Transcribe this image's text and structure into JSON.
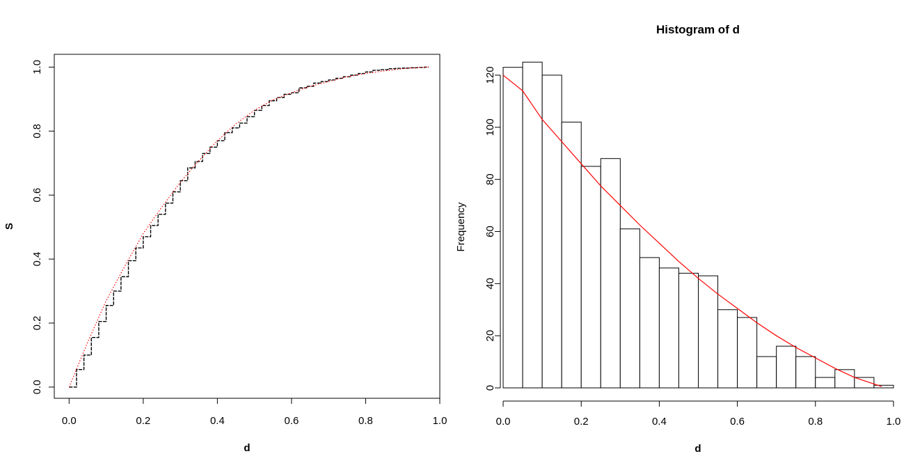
{
  "chart_data": [
    {
      "type": "line",
      "title": "",
      "xlabel": "d",
      "ylabel": "S",
      "xlim": [
        -0.04,
        1.0
      ],
      "ylim": [
        -0.035,
        1.04
      ],
      "x_ticks": [
        0.0,
        0.2,
        0.4,
        0.6,
        0.8,
        1.0
      ],
      "x_tick_labels": [
        "0.0",
        "0.2",
        "0.4",
        "0.6",
        "0.8",
        "1.0"
      ],
      "y_ticks": [
        0.0,
        0.2,
        0.4,
        0.6,
        0.8,
        1.0
      ],
      "y_tick_labels": [
        "0.0",
        "0.2",
        "0.4",
        "0.6",
        "0.8",
        "1.0"
      ],
      "grid": false,
      "legend": "none",
      "series": [
        {
          "style": "step",
          "color": "#000000",
          "x": [
            0.0,
            0.02,
            0.04,
            0.06,
            0.08,
            0.1,
            0.12,
            0.14,
            0.16,
            0.18,
            0.2,
            0.22,
            0.24,
            0.26,
            0.28,
            0.3,
            0.32,
            0.34,
            0.36,
            0.38,
            0.4,
            0.42,
            0.44,
            0.46,
            0.48,
            0.5,
            0.52,
            0.54,
            0.56,
            0.58,
            0.6,
            0.62,
            0.64,
            0.66,
            0.68,
            0.7,
            0.72,
            0.74,
            0.76,
            0.78,
            0.8,
            0.82,
            0.84,
            0.86,
            0.88,
            0.9,
            0.92,
            0.94,
            0.96,
            0.97
          ],
          "y": [
            0.0,
            0.055,
            0.1,
            0.155,
            0.205,
            0.255,
            0.3,
            0.345,
            0.395,
            0.435,
            0.47,
            0.505,
            0.54,
            0.575,
            0.61,
            0.645,
            0.685,
            0.705,
            0.73,
            0.75,
            0.77,
            0.795,
            0.81,
            0.825,
            0.845,
            0.865,
            0.88,
            0.895,
            0.905,
            0.915,
            0.92,
            0.935,
            0.94,
            0.95,
            0.955,
            0.96,
            0.965,
            0.97,
            0.975,
            0.98,
            0.985,
            0.99,
            0.992,
            0.995,
            0.996,
            0.997,
            0.998,
            0.999,
            1.0,
            1.0
          ]
        },
        {
          "style": "dotted",
          "color": "#ff0000",
          "x": [
            0.0,
            0.05,
            0.1,
            0.15,
            0.2,
            0.25,
            0.3,
            0.35,
            0.4,
            0.45,
            0.5,
            0.55,
            0.6,
            0.65,
            0.7,
            0.75,
            0.8,
            0.85,
            0.9,
            0.95,
            0.97
          ],
          "y": [
            0.0,
            0.14,
            0.27,
            0.3775,
            0.48,
            0.5625,
            0.64,
            0.7075,
            0.77,
            0.8225,
            0.865,
            0.8975,
            0.92,
            0.94,
            0.955,
            0.97,
            0.98,
            0.988,
            0.995,
            0.999,
            1.0
          ]
        }
      ]
    },
    {
      "type": "bar",
      "subtype": "histogram",
      "title": "Histogram of d",
      "xlabel": "d",
      "ylabel": "Frequency",
      "xlim": [
        -0.05,
        1.05
      ],
      "ylim": [
        -4,
        128
      ],
      "x_ticks": [
        0.0,
        0.2,
        0.4,
        0.6,
        0.8,
        1.0
      ],
      "x_tick_labels": [
        "0.0",
        "0.2",
        "0.4",
        "0.6",
        "0.8",
        "1.0"
      ],
      "y_ticks": [
        0,
        20,
        40,
        60,
        80,
        100,
        120
      ],
      "y_tick_labels": [
        "0",
        "20",
        "40",
        "60",
        "80",
        "100",
        "120"
      ],
      "grid": false,
      "legend": "none",
      "bin_edges": [
        0.0,
        0.05,
        0.1,
        0.15,
        0.2,
        0.25,
        0.3,
        0.35,
        0.4,
        0.45,
        0.5,
        0.55,
        0.6,
        0.65,
        0.7,
        0.75,
        0.8,
        0.85,
        0.9,
        0.95,
        1.0
      ],
      "counts": [
        123,
        125,
        120,
        102,
        85,
        88,
        61,
        50,
        46,
        44,
        43,
        30,
        27,
        12,
        16,
        12,
        4,
        7,
        4,
        1
      ],
      "bar_color": "#ffffff",
      "bar_border": "#000000",
      "overlay": {
        "type": "line",
        "color": "#ff0000",
        "x": [
          0.0,
          0.05,
          0.1,
          0.15,
          0.2,
          0.25,
          0.3,
          0.35,
          0.4,
          0.45,
          0.5,
          0.55,
          0.6,
          0.65,
          0.7,
          0.75,
          0.8,
          0.85,
          0.9,
          0.95,
          0.97
        ],
        "y": [
          120,
          114,
          103,
          94.5,
          86,
          77.5,
          70,
          62.5,
          55.5,
          48.5,
          42,
          36,
          30.5,
          25,
          20,
          15.5,
          11.5,
          7.5,
          4,
          1.5,
          0.5
        ]
      }
    }
  ]
}
